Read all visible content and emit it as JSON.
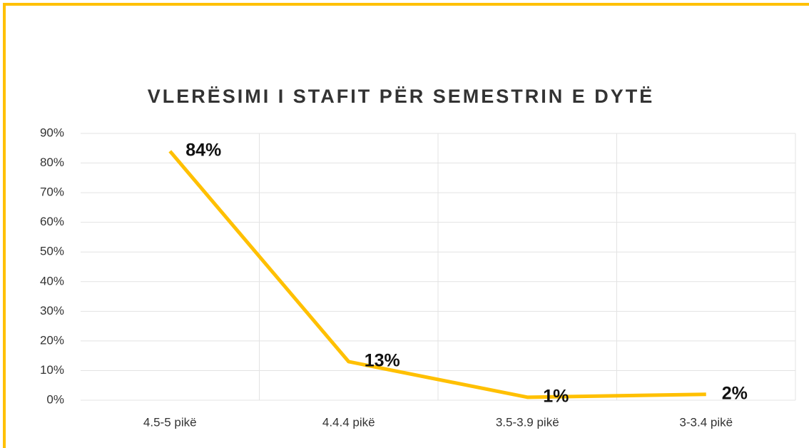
{
  "chart_data": {
    "type": "line",
    "title": "VLERËSIMI I STAFIT PËR SEMESTRIN E DYTË",
    "categories": [
      "4.5-5 pikë",
      "4.4.4 pikë",
      "3.5-3.9 pikë",
      "3-3.4 pikë"
    ],
    "values": [
      84,
      13,
      1,
      2
    ],
    "value_labels": [
      "84%",
      "13%",
      "1%",
      "2%"
    ],
    "color": "#ffc000",
    "ylim": [
      0,
      90
    ],
    "yticks": [
      {
        "value": 0,
        "label": "0%"
      },
      {
        "value": 10,
        "label": "10%"
      },
      {
        "value": 20,
        "label": "20%"
      },
      {
        "value": 30,
        "label": "30%"
      },
      {
        "value": 40,
        "label": "40%"
      },
      {
        "value": 50,
        "label": "50%"
      },
      {
        "value": 60,
        "label": "60%"
      },
      {
        "value": 70,
        "label": "70%"
      },
      {
        "value": 80,
        "label": "80%"
      },
      {
        "value": 90,
        "label": "90%"
      }
    ],
    "grid": true
  }
}
